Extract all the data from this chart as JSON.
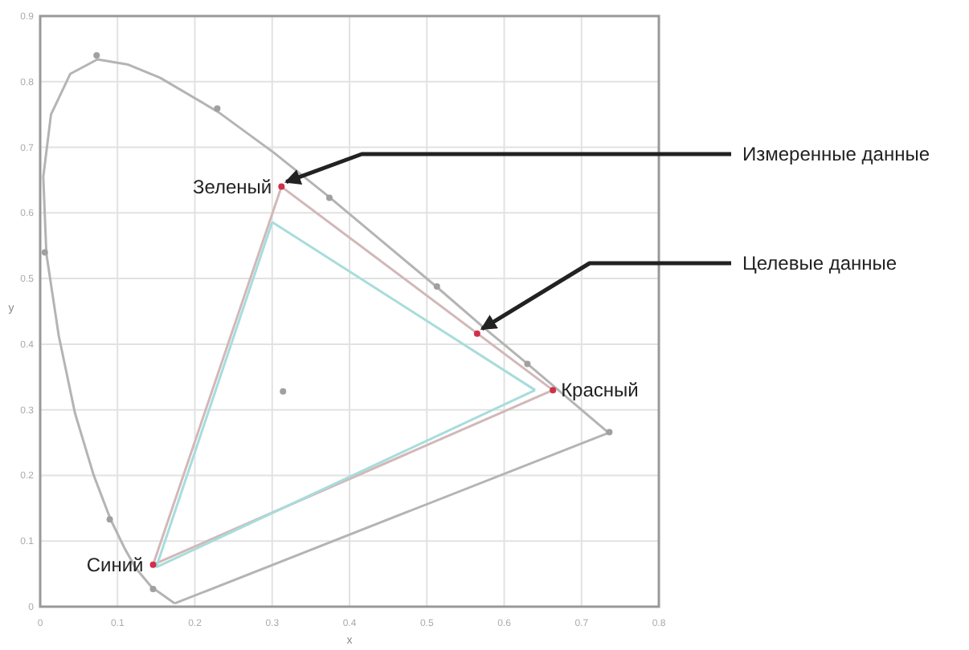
{
  "chart_data": {
    "type": "line",
    "xlabel": "x",
    "ylabel": "y",
    "xlim": [
      0,
      0.8
    ],
    "ylim": [
      0,
      0.9
    ],
    "xticks": [
      0,
      0.1,
      0.2,
      0.3,
      0.4,
      0.5,
      0.6,
      0.7,
      0.8
    ],
    "yticks": [
      0,
      0.1,
      0.2,
      0.3,
      0.4,
      0.5,
      0.6,
      0.7,
      0.8,
      0.9
    ],
    "grid": true,
    "series": [
      {
        "color": "#b4b4b4",
        "x": [
          0.174,
          0.144,
          0.124,
          0.11,
          0.091,
          0.069,
          0.045,
          0.024,
          0.008,
          0.004,
          0.014,
          0.039,
          0.074,
          0.114,
          0.155,
          0.23,
          0.302,
          0.373,
          0.444,
          0.513,
          0.575,
          0.627,
          0.692,
          0.735
        ],
        "values": [
          0.005,
          0.03,
          0.058,
          0.087,
          0.133,
          0.201,
          0.295,
          0.413,
          0.538,
          0.655,
          0.75,
          0.812,
          0.834,
          0.826,
          0.806,
          0.754,
          0.692,
          0.625,
          0.555,
          0.487,
          0.424,
          0.373,
          0.308,
          0.265
        ]
      },
      {
        "color": "#b4b4b4",
        "x": [
          0.174,
          0.735
        ],
        "values": [
          0.005,
          0.265
        ]
      },
      {
        "color": "#d2b8b8",
        "x": [
          0.146,
          0.312
        ],
        "values": [
          0.064,
          0.64
        ]
      },
      {
        "color": "#d2b8b8",
        "x": [
          0.312,
          0.663
        ],
        "values": [
          0.64,
          0.33
        ]
      },
      {
        "color": "#d2b8b8",
        "x": [
          0.146,
          0.663
        ],
        "values": [
          0.064,
          0.33
        ]
      },
      {
        "color": "#a8dcdc",
        "x": [
          0.15,
          0.3
        ],
        "values": [
          0.06,
          0.586
        ]
      },
      {
        "color": "#a8dcdc",
        "x": [
          0.3,
          0.64
        ],
        "values": [
          0.586,
          0.33
        ]
      },
      {
        "color": "#a8dcdc",
        "x": [
          0.15,
          0.64
        ],
        "values": [
          0.06,
          0.33
        ]
      },
      {
        "type": "scatter",
        "color": "#a0a0a0",
        "marker": "circle",
        "x": [
          0.073,
          0.229,
          0.006,
          0.09,
          0.146,
          0.374,
          0.513,
          0.63,
          0.736,
          0.314
        ],
        "values": [
          0.84,
          0.759,
          0.54,
          0.133,
          0.027,
          0.623,
          0.488,
          0.37,
          0.266,
          0.328
        ]
      },
      {
        "type": "scatter",
        "color": "#d0304a",
        "marker": "circle",
        "x": [
          0.312,
          0.565,
          0.663,
          0.146
        ],
        "values": [
          0.64,
          0.416,
          0.33,
          0.064
        ]
      }
    ],
    "annotations": [
      {
        "text": "Зеленый",
        "x": 0.312,
        "y": 0.64
      },
      {
        "text": "Красный",
        "x": 0.663,
        "y": 0.33
      },
      {
        "text": "Синий",
        "x": 0.146,
        "y": 0.064
      },
      {
        "text": "Измеренные данные",
        "x": 0.312,
        "y": 0.64
      },
      {
        "text": "Целевые данные",
        "x": 0.565,
        "y": 0.416
      }
    ]
  }
}
